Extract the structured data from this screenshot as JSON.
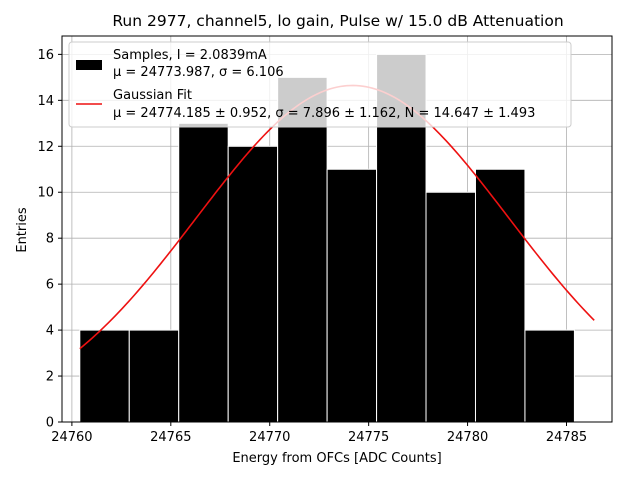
{
  "chart_data": {
    "type": "bar",
    "title": "Run 2977, channel5, lo gain, Pulse w/ 15.0 dB Attenuation",
    "xlabel": "Energy from OFCs [ADC Counts]",
    "ylabel": "Entries",
    "xlim": [
      24759.5,
      24787.3
    ],
    "ylim": [
      0,
      16.8
    ],
    "xticks": [
      24760,
      24765,
      24770,
      24775,
      24780,
      24785
    ],
    "yticks": [
      0,
      2,
      4,
      6,
      8,
      10,
      12,
      14,
      16
    ],
    "grid": true,
    "legend_position": "top-left",
    "histogram": {
      "name": "Samples, I = 2.0839mA",
      "stats_label": "μ = 24773.987, σ = 6.106",
      "color": "#000000",
      "edge_color": "#ffffff",
      "bins": [
        {
          "x0": 24760.4,
          "x1": 24762.9,
          "count": 4
        },
        {
          "x0": 24762.9,
          "x1": 24765.4,
          "count": 4
        },
        {
          "x0": 24765.4,
          "x1": 24767.9,
          "count": 13
        },
        {
          "x0": 24767.9,
          "x1": 24770.4,
          "count": 12
        },
        {
          "x0": 24770.4,
          "x1": 24772.9,
          "count": 15
        },
        {
          "x0": 24772.9,
          "x1": 24775.4,
          "count": 11
        },
        {
          "x0": 24775.4,
          "x1": 24777.9,
          "count": 16
        },
        {
          "x0": 24777.9,
          "x1": 24780.4,
          "count": 10
        },
        {
          "x0": 24780.4,
          "x1": 24782.9,
          "count": 11
        },
        {
          "x0": 24782.9,
          "x1": 24785.4,
          "count": 4
        }
      ]
    },
    "fit": {
      "name": "Gaussian Fit",
      "stats_label": "μ = 24774.185 ± 0.952, σ = 7.896 ± 1.162, N = 14.647 ± 1.493",
      "color": "#ee1111",
      "mu": 24774.185,
      "sigma": 7.896,
      "N": 14.647,
      "x_range": [
        24760.4,
        24786.4
      ]
    }
  }
}
